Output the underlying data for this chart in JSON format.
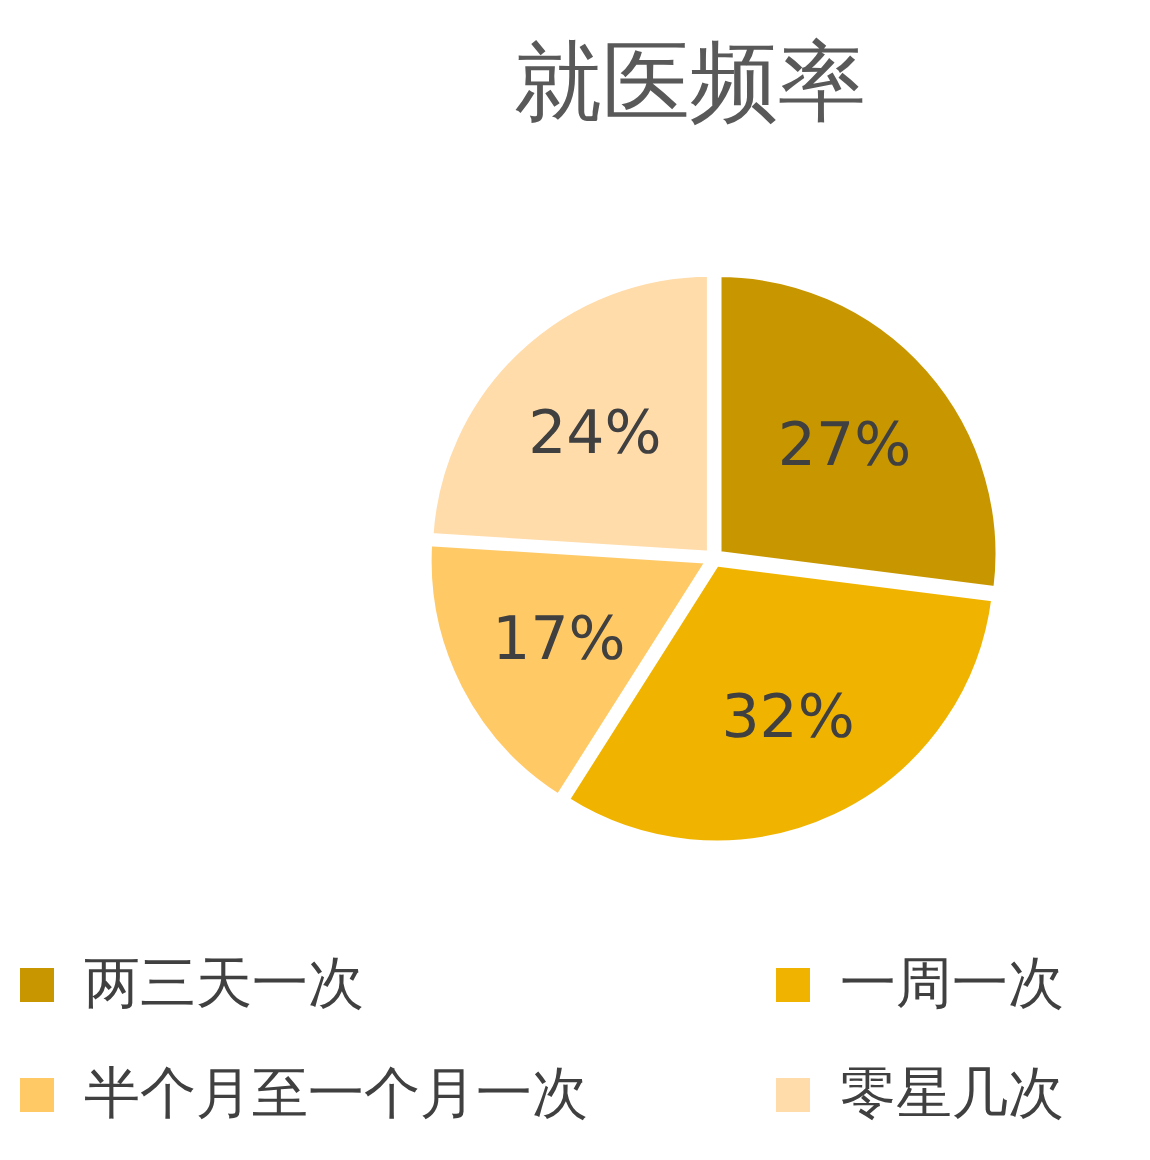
{
  "chart_data": {
    "type": "pie",
    "title": "就医频率",
    "categories": [
      "两三天一次",
      "一周一次",
      "半个月至一个月一次",
      "零星几次"
    ],
    "values": [
      27,
      32,
      17,
      24
    ],
    "colors": [
      "#c89700",
      "#f0b400",
      "#ffc966",
      "#ffdcaa"
    ],
    "value_labels": [
      "27%",
      "32%",
      "17%",
      "24%"
    ],
    "legend": "bottom"
  }
}
